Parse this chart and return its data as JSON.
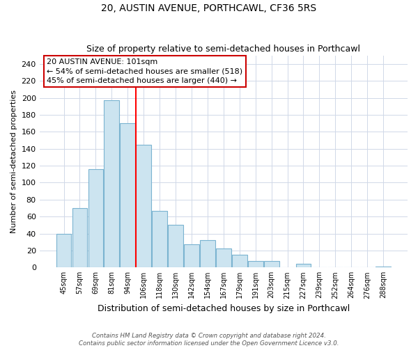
{
  "title": "20, AUSTIN AVENUE, PORTHCAWL, CF36 5RS",
  "subtitle": "Size of property relative to semi-detached houses in Porthcawl",
  "xlabel": "Distribution of semi-detached houses by size in Porthcawl",
  "ylabel": "Number of semi-detached properties",
  "bar_color": "#cce4f0",
  "bar_edge_color": "#7ab3d0",
  "categories": [
    "45sqm",
    "57sqm",
    "69sqm",
    "81sqm",
    "94sqm",
    "106sqm",
    "118sqm",
    "130sqm",
    "142sqm",
    "154sqm",
    "167sqm",
    "179sqm",
    "191sqm",
    "203sqm",
    "215sqm",
    "227sqm",
    "239sqm",
    "252sqm",
    "264sqm",
    "276sqm",
    "288sqm"
  ],
  "values": [
    40,
    70,
    116,
    197,
    170,
    145,
    67,
    50,
    27,
    32,
    22,
    15,
    8,
    8,
    0,
    4,
    0,
    0,
    0,
    0,
    1
  ],
  "ylim": [
    0,
    250
  ],
  "yticks": [
    0,
    20,
    40,
    60,
    80,
    100,
    120,
    140,
    160,
    180,
    200,
    220,
    240
  ],
  "property_line_x": 4.5,
  "property_line_label": "20 AUSTIN AVENUE: 101sqm",
  "annotation_smaller": "← 54% of semi-detached houses are smaller (518)",
  "annotation_larger": "45% of semi-detached houses are larger (440) →",
  "box_edge_color": "#cc0000",
  "footer1": "Contains HM Land Registry data © Crown copyright and database right 2024.",
  "footer2": "Contains public sector information licensed under the Open Government Licence v3.0."
}
